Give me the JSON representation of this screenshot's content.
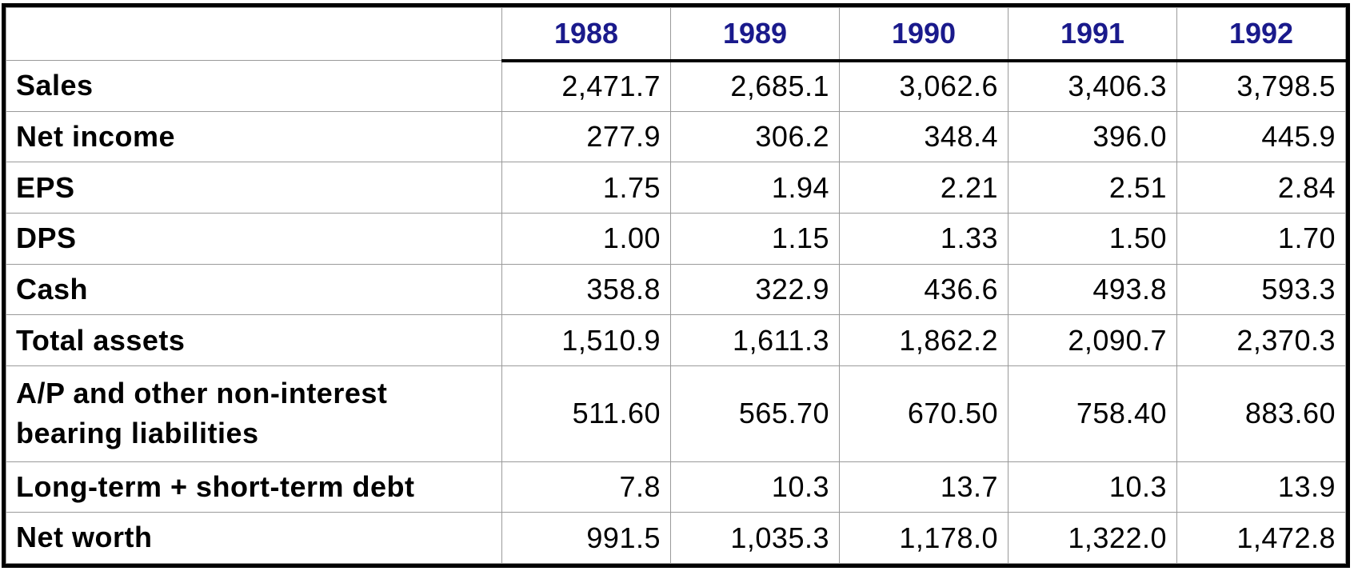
{
  "header": {
    "years": [
      "1988",
      "1989",
      "1990",
      "1991",
      "1992"
    ]
  },
  "rows": [
    {
      "label": "Sales",
      "values": [
        "2,471.7",
        "2,685.1",
        "3,062.6",
        "3,406.3",
        "3,798.5"
      ]
    },
    {
      "label": "Net income",
      "values": [
        "277.9",
        "306.2",
        "348.4",
        "396.0",
        "445.9"
      ]
    },
    {
      "label": "EPS",
      "values": [
        "1.75",
        "1.94",
        "2.21",
        "2.51",
        "2.84"
      ]
    },
    {
      "label": "DPS",
      "values": [
        "1.00",
        "1.15",
        "1.33",
        "1.50",
        "1.70"
      ]
    },
    {
      "label": "Cash",
      "values": [
        "358.8",
        "322.9",
        "436.6",
        "493.8",
        "593.3"
      ]
    },
    {
      "label": "Total assets",
      "values": [
        "1,510.9",
        "1,611.3",
        "1,862.2",
        "2,090.7",
        "2,370.3"
      ]
    },
    {
      "label_line1": "A/P and other non-interest",
      "label_line2": "bearing liabilities",
      "values": [
        "511.60",
        "565.70",
        "670.50",
        "758.40",
        "883.60"
      ]
    },
    {
      "label": "Long-term + short-term debt",
      "values": [
        "7.8",
        "10.3",
        "13.7",
        "10.3",
        "13.9"
      ]
    },
    {
      "label": "Net worth",
      "values": [
        "991.5",
        "1,035.3",
        "1,178.0",
        "1,322.0",
        "1,472.8"
      ]
    }
  ],
  "colors": {
    "header_text": "#1a1a8c",
    "grid": "#9a9a9a",
    "border": "#000000"
  }
}
